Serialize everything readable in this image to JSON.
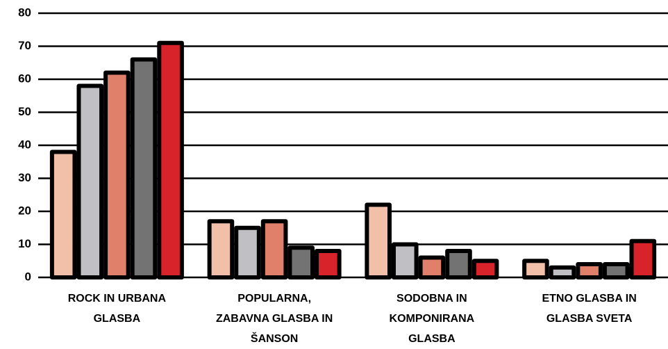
{
  "chart_data": {
    "type": "bar",
    "categories": [
      "ROCK IN URBANA\nGLASBA",
      "POPULARNA,\nZABAVNA GLASBA IN\nŠANSON",
      "SODOBNA IN\nKOMPONIRANA\nGLASBA",
      "ETNO GLASBA IN\nGLASBA SVETA"
    ],
    "series": [
      {
        "color": "#f2c0a8",
        "values": [
          38,
          17,
          22,
          5
        ]
      },
      {
        "color": "#bfbfc4",
        "values": [
          58,
          15,
          10,
          3
        ]
      },
      {
        "color": "#e0806a",
        "values": [
          62,
          17,
          6,
          4
        ]
      },
      {
        "color": "#737373",
        "values": [
          66,
          9,
          8,
          4
        ]
      },
      {
        "color": "#d9232b",
        "values": [
          71,
          8,
          5,
          11
        ]
      }
    ],
    "ylim": [
      0,
      80
    ],
    "yticks": [
      0,
      10,
      20,
      30,
      40,
      50,
      60,
      70,
      80
    ],
    "grid": true
  }
}
